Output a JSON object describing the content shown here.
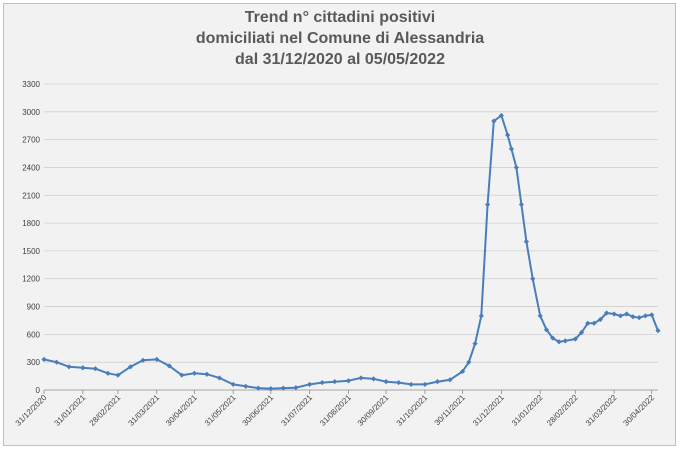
{
  "title_lines": [
    "Trend n° cittadini positivi",
    "domiciliati nel Comune di Alessandria",
    "dal 31/12/2020 al 05/05/2022"
  ],
  "chart_data": {
    "type": "line",
    "title": "Trend n° cittadini positivi domiciliati nel Comune di Alessandria dal 31/12/2020 al 05/05/2022",
    "xlabel": "",
    "ylabel": "",
    "ylim": [
      0,
      3300
    ],
    "yticks": [
      0,
      300,
      600,
      900,
      1200,
      1500,
      1800,
      2100,
      2400,
      2700,
      3000,
      3300
    ],
    "xtick_labels": [
      "31/12/2020",
      "31/01/2021",
      "28/02/2021",
      "31/03/2021",
      "30/04/2021",
      "31/05/2021",
      "30/06/2021",
      "31/07/2021",
      "31/08/2021",
      "30/09/2021",
      "31/10/2021",
      "30/11/2021",
      "31/12/2021",
      "31/01/2022",
      "28/02/2022",
      "31/03/2022",
      "30/04/2022"
    ],
    "grid": true,
    "legend": "none",
    "color": "#4a7ebb",
    "marker": "diamond",
    "series": [
      {
        "x": [
          "2020-12-31",
          "2021-01-10",
          "2021-01-20",
          "2021-01-31",
          "2021-02-10",
          "2021-02-20",
          "2021-02-28",
          "2021-03-10",
          "2021-03-20",
          "2021-03-31",
          "2021-04-10",
          "2021-04-20",
          "2021-04-30",
          "2021-05-10",
          "2021-05-20",
          "2021-05-31",
          "2021-06-10",
          "2021-06-20",
          "2021-06-30",
          "2021-07-10",
          "2021-07-20",
          "2021-07-31",
          "2021-08-10",
          "2021-08-20",
          "2021-08-31",
          "2021-09-10",
          "2021-09-20",
          "2021-09-30",
          "2021-10-10",
          "2021-10-20",
          "2021-10-31",
          "2021-11-10",
          "2021-11-20",
          "2021-11-30",
          "2021-12-05",
          "2021-12-10",
          "2021-12-15",
          "2021-12-20",
          "2021-12-25",
          "2021-12-31",
          "2022-01-05",
          "2022-01-08",
          "2022-01-12",
          "2022-01-16",
          "2022-01-20",
          "2022-01-25",
          "2022-01-31",
          "2022-02-05",
          "2022-02-10",
          "2022-02-15",
          "2022-02-20",
          "2022-02-28",
          "2022-03-05",
          "2022-03-10",
          "2022-03-15",
          "2022-03-20",
          "2022-03-25",
          "2022-03-31",
          "2022-04-05",
          "2022-04-10",
          "2022-04-15",
          "2022-04-20",
          "2022-04-25",
          "2022-04-30",
          "2022-05-05"
        ],
        "y": [
          330,
          300,
          250,
          240,
          230,
          180,
          160,
          250,
          320,
          330,
          260,
          160,
          180,
          170,
          130,
          60,
          40,
          20,
          15,
          20,
          25,
          60,
          80,
          90,
          100,
          130,
          120,
          90,
          80,
          60,
          60,
          90,
          110,
          200,
          300,
          500,
          800,
          2000,
          2900,
          2960,
          2750,
          2600,
          2400,
          2000,
          1600,
          1200,
          800,
          650,
          560,
          520,
          530,
          550,
          620,
          720,
          720,
          760,
          830,
          820,
          800,
          820,
          790,
          780,
          800,
          810,
          640
        ]
      }
    ]
  }
}
